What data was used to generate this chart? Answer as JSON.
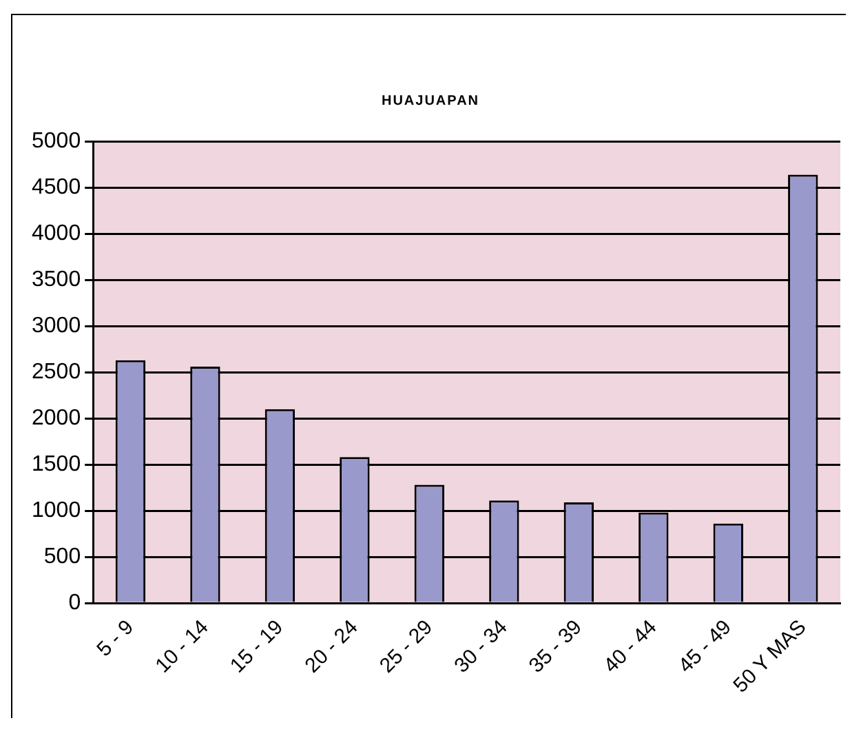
{
  "chart_data": {
    "type": "bar",
    "title": "HUAJUAPAN",
    "categories": [
      "5 - 9",
      "10 - 14",
      "15 - 19",
      "20 - 24",
      "25 - 29",
      "30 - 34",
      "35 - 39",
      "40 - 44",
      "45 - 49",
      "50 Y MAS"
    ],
    "values": [
      2630,
      2560,
      2100,
      1580,
      1280,
      1110,
      1090,
      980,
      860,
      4640
    ],
    "color": "#9999cc",
    "ylim": [
      0,
      5000
    ],
    "yticks": [
      0,
      500,
      1000,
      1500,
      2000,
      2500,
      3000,
      3500,
      4000,
      4500,
      5000
    ],
    "grid": "y",
    "legend": false
  }
}
